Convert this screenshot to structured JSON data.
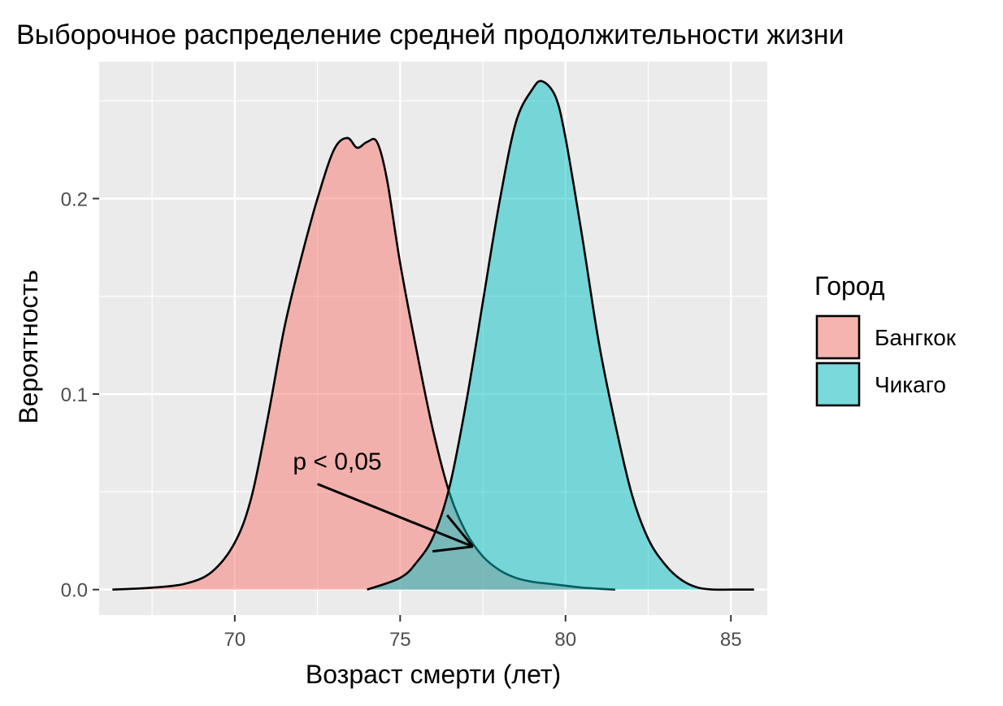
{
  "chart_data": {
    "type": "area",
    "title": "Выборочное распределение средней продолжительности жизни",
    "xlabel": "Возраст смерти (лет)",
    "ylabel": "Вероятность",
    "xlim": [
      65.9,
      86.1
    ],
    "ylim": [
      -0.013,
      0.27
    ],
    "x_ticks": [
      70,
      75,
      80,
      85
    ],
    "y_ticks": [
      0.0,
      0.1,
      0.2
    ],
    "y_tick_labels": [
      "0.0",
      "0.1",
      "0.2"
    ],
    "grid": true,
    "legend": {
      "title": "Город",
      "position": "right"
    },
    "annotation": {
      "text": "p < 0,05",
      "x": 73.1,
      "y": 0.066,
      "arrow_from": [
        72.5,
        0.054
      ],
      "arrow_to": [
        77.2,
        0.022
      ]
    },
    "series": [
      {
        "name": "Бангкок",
        "color": "#F8766D",
        "x": [
          66.3,
          67.5,
          68.5,
          69.3,
          70.0,
          70.5,
          71.0,
          71.5,
          72.0,
          72.5,
          73.0,
          73.4,
          73.7,
          74.0,
          74.3,
          74.6,
          75.0,
          75.5,
          76.0,
          76.5,
          77.0,
          77.5,
          78.0,
          78.5,
          79.0,
          79.5,
          80.0,
          80.5,
          81.5
        ],
        "y": [
          0.0,
          0.001,
          0.003,
          0.009,
          0.024,
          0.047,
          0.088,
          0.134,
          0.169,
          0.2,
          0.225,
          0.231,
          0.226,
          0.229,
          0.229,
          0.21,
          0.167,
          0.122,
          0.081,
          0.049,
          0.029,
          0.017,
          0.01,
          0.006,
          0.004,
          0.003,
          0.002,
          0.001,
          0.0
        ]
      },
      {
        "name": "Чикаго",
        "color": "#00BFC4",
        "x": [
          74.0,
          75.0,
          75.5,
          76.0,
          76.5,
          77.0,
          77.5,
          78.0,
          78.5,
          79.0,
          79.3,
          79.7,
          80.0,
          80.5,
          81.0,
          81.5,
          82.0,
          82.5,
          83.0,
          83.5,
          84.0,
          84.5,
          85.0,
          85.7
        ],
        "y": [
          0.0,
          0.006,
          0.014,
          0.027,
          0.053,
          0.096,
          0.147,
          0.198,
          0.239,
          0.256,
          0.26,
          0.252,
          0.231,
          0.181,
          0.127,
          0.085,
          0.049,
          0.026,
          0.013,
          0.005,
          0.001,
          0.0,
          0.0,
          0.0
        ]
      }
    ]
  }
}
